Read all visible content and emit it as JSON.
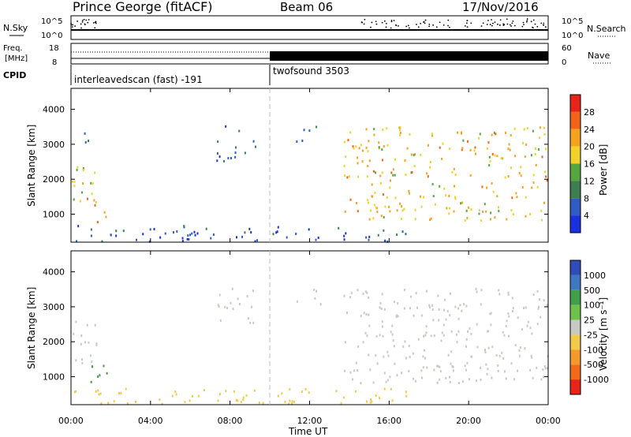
{
  "header": {
    "station": "Prince George (fitACF)",
    "beam": "Beam 06",
    "date": "17/Nov/2016"
  },
  "panels": {
    "nsky": {
      "left_label": "N.Sky",
      "right_label": "N.Search",
      "ticks": [
        "10^5",
        "10^0"
      ],
      "right_ticks": [
        "10^5",
        "10^0"
      ]
    },
    "freq": {
      "left_label_1": "Freq.",
      "left_label_2": "[MHz]",
      "right_label": "Nave",
      "ticks": [
        "18",
        "8"
      ],
      "right_ticks": [
        "60",
        "0"
      ]
    },
    "cpid": {
      "label": "CPID",
      "segments": [
        {
          "label": "interleavedscan (fast) -191",
          "start_hour": 0
        },
        {
          "label": "twofsound 3503",
          "start_hour": 10
        }
      ]
    }
  },
  "colors": {
    "power": [
      "#1a2fe0",
      "#2f5cc4",
      "#3e7d52",
      "#56a63f",
      "#f2d22a",
      "#f5a21e",
      "#f06318",
      "#e8231a"
    ],
    "velocity": [
      "#2f4db8",
      "#3f78c2",
      "#3f9f4a",
      "#6cc24a",
      "#c9c9c4",
      "#f2c94a",
      "#f29a2a",
      "#f06a1a",
      "#e8231a"
    ],
    "ground": "#c7c7c3"
  },
  "chart_data": [
    {
      "type": "heatmap",
      "name": "power",
      "ylabel": "Slant Range [km]",
      "yticks": [
        1000,
        2000,
        3000,
        4000
      ],
      "ylim": [
        200,
        4600
      ],
      "xlim": [
        0,
        24
      ],
      "colorbar_label": "Power [dB]",
      "colorbar_ticks": [
        4,
        8,
        12,
        16,
        20,
        24,
        28
      ],
      "clim": [
        0,
        32
      ],
      "echo_regions": [
        {
          "t0": 0.0,
          "t1": 1.3,
          "r0": 1200,
          "r1": 2650,
          "value": 18
        },
        {
          "t0": 0.7,
          "t1": 1.8,
          "r0": 750,
          "r1": 1450,
          "value": 22
        },
        {
          "t0": 0.2,
          "t1": 1.0,
          "r0": 3000,
          "r1": 3500,
          "value": 6
        },
        {
          "t0": 7.3,
          "t1": 8.8,
          "r0": 2500,
          "r1": 3500,
          "value": 7
        },
        {
          "t0": 8.8,
          "t1": 9.3,
          "r0": 2550,
          "r1": 3100,
          "value": 8
        },
        {
          "t0": 11.3,
          "t1": 12.6,
          "r0": 3000,
          "r1": 3500,
          "value": 6
        },
        {
          "t0": 13.7,
          "t1": 24.0,
          "r0": 800,
          "r1": 3500,
          "value": 20
        },
        {
          "t0": 0.0,
          "t1": 17.0,
          "r0": 200,
          "r1": 650,
          "value": 6
        }
      ]
    },
    {
      "type": "heatmap",
      "name": "velocity",
      "ylabel": "Slant Range [km]",
      "yticks": [
        1000,
        2000,
        3000,
        4000
      ],
      "ylim": [
        200,
        4600
      ],
      "xlim": [
        0,
        24
      ],
      "colorbar_label": "Velocity [m s⁻¹]",
      "colorbar_ticks": [
        "1000",
        "500",
        "100",
        "25",
        "-25",
        "-100",
        "-500",
        "-1000"
      ],
      "echo_regions": [
        {
          "t0": 0.0,
          "t1": 1.3,
          "r0": 1200,
          "r1": 2650,
          "value": 0
        },
        {
          "t0": 0.7,
          "t1": 1.8,
          "r0": 750,
          "r1": 1450,
          "value": 60
        },
        {
          "t0": 7.3,
          "t1": 9.3,
          "r0": 2500,
          "r1": 3500,
          "value": 0
        },
        {
          "t0": 11.3,
          "t1": 12.6,
          "r0": 3000,
          "r1": 3500,
          "value": 0
        },
        {
          "t0": 13.7,
          "t1": 24.0,
          "r0": 800,
          "r1": 3500,
          "value": -20
        },
        {
          "t0": 0.0,
          "t1": 17.0,
          "r0": 200,
          "r1": 650,
          "value": -60
        }
      ]
    }
  ],
  "xaxis": {
    "ticks": [
      "00:00",
      "04:00",
      "08:00",
      "12:00",
      "16:00",
      "20:00",
      "00:00"
    ],
    "label": "Time UT"
  }
}
